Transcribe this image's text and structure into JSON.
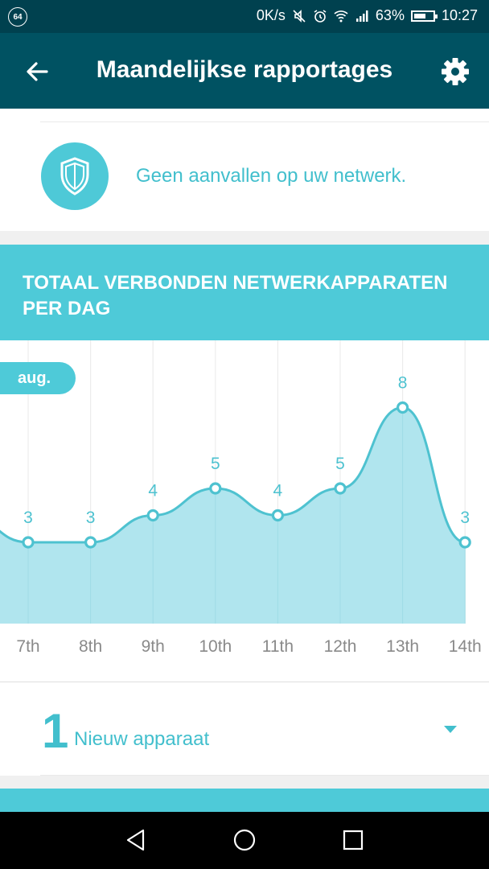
{
  "status_bar": {
    "badge": "64",
    "net_speed": "0K/s",
    "battery_percent": "63%",
    "battery_level": 0.63,
    "time": "10:27",
    "icons": [
      "mute-icon",
      "alarm-icon",
      "wifi-icon",
      "signal-icon",
      "battery-icon"
    ]
  },
  "appbar": {
    "title": "Maandelijkse rapportages",
    "back_icon": "arrow-left-icon",
    "settings_icon": "gear-icon"
  },
  "security": {
    "icon": "shield-icon",
    "message": "Geen aanvallen op uw netwerk."
  },
  "chart_header": {
    "title": "TOTAAL VERBONDEN NETWERKAPPARATEN PER DAG"
  },
  "chart_data": {
    "type": "area",
    "title": "TOTAAL VERBONDEN NETWERKAPPARATEN PER DAG",
    "month_label": "aug.",
    "categories": [
      "7th",
      "8th",
      "9th",
      "10th",
      "11th",
      "12th",
      "13th",
      "14th"
    ],
    "values": [
      3,
      3,
      4,
      5,
      4,
      5,
      8,
      3
    ],
    "prev_value": 4,
    "ylim": [
      0,
      10
    ],
    "grid": true,
    "colors": {
      "line": "#4ec2d0",
      "fill": "#b0e5ee",
      "label": "#4ec2d0",
      "tick": "#8a8a8a"
    }
  },
  "devices": {
    "count": "1",
    "label": "Nieuw apparaat"
  },
  "navbar": {
    "icons": [
      "back-triangle-icon",
      "home-circle-icon",
      "recents-square-icon"
    ]
  }
}
